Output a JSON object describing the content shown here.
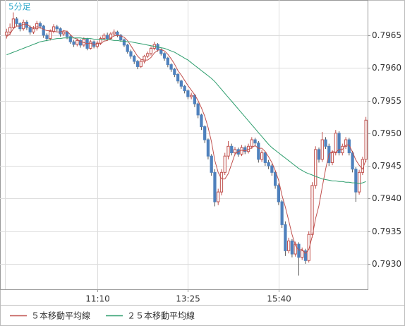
{
  "chart_data": {
    "type": "candlestick",
    "label": "5分足",
    "label_color": "#33aacc",
    "categories": [
      null,
      null,
      null,
      null,
      null,
      null,
      null,
      null,
      null,
      null,
      null,
      null,
      null,
      null,
      null,
      null,
      null,
      null,
      null,
      null,
      null,
      null,
      null,
      null,
      null,
      null,
      null,
      "11:10",
      null,
      null,
      null,
      null,
      null,
      null,
      null,
      null,
      null,
      null,
      null,
      null,
      null,
      null,
      null,
      null,
      null,
      null,
      null,
      null,
      null,
      null,
      null,
      null,
      null,
      null,
      "13:25",
      null,
      null,
      null,
      null,
      null,
      null,
      null,
      null,
      null,
      null,
      null,
      null,
      null,
      null,
      null,
      null,
      null,
      null,
      null,
      null,
      null,
      null,
      null,
      null,
      null,
      null,
      "15:40",
      null,
      null,
      null,
      null,
      null,
      null,
      null,
      null,
      null,
      null,
      null,
      null,
      null,
      null,
      null,
      null,
      null,
      null,
      null,
      null,
      null,
      null,
      null,
      null,
      null,
      null
    ],
    "open": [
      0.7965,
      0.79655,
      0.79662,
      0.79675,
      0.79668,
      0.7966,
      0.7967,
      0.79662,
      0.79655,
      0.7966,
      0.79668,
      0.79664,
      0.7965,
      0.79645,
      0.79656,
      0.79663,
      0.7966,
      0.79652,
      0.79655,
      0.79648,
      0.7964,
      0.79636,
      0.79642,
      0.79635,
      0.79644,
      0.7963,
      0.7964,
      0.79633,
      0.79638,
      0.79645,
      0.7965,
      0.79645,
      0.79652,
      0.79655,
      0.7965,
      0.79643,
      0.79635,
      0.79625,
      0.79618,
      0.7961,
      0.79602,
      0.7961,
      0.79618,
      0.79622,
      0.7963,
      0.79636,
      0.79628,
      0.79622,
      0.79615,
      0.79605,
      0.79598,
      0.7959,
      0.7958,
      0.79572,
      0.79565,
      0.79556,
      0.79558,
      0.79545,
      0.79528,
      0.7951,
      0.7949,
      0.79465,
      0.7944,
      0.79395,
      0.7941,
      0.7944,
      0.79465,
      0.7948,
      0.7947,
      0.79475,
      0.79468,
      0.79478,
      0.79472,
      0.7948,
      0.7949,
      0.79485,
      0.7946,
      0.7947,
      0.79455,
      0.7945,
      0.7944,
      0.7942,
      0.79395,
      0.7936,
      0.7932,
      0.79335,
      0.79315,
      0.7933,
      0.7931,
      0.7932,
      0.79305,
      0.79345,
      0.7942,
      0.79475,
      0.7946,
      0.7949,
      0.7948,
      0.79455,
      0.7947,
      0.795,
      0.7947,
      0.7948,
      0.7949,
      0.7947,
      0.79445,
      0.7941,
      0.7944,
      0.7946
    ],
    "high": [
      0.7966,
      0.79668,
      0.79685,
      0.79678,
      0.7967,
      0.79674,
      0.79673,
      0.79665,
      0.79664,
      0.79672,
      0.79671,
      0.79666,
      0.79653,
      0.79659,
      0.79667,
      0.79666,
      0.79662,
      0.79658,
      0.79657,
      0.7965,
      0.79643,
      0.79645,
      0.79644,
      0.79647,
      0.79646,
      0.79643,
      0.79642,
      0.79641,
      0.79648,
      0.79653,
      0.79654,
      0.79655,
      0.79659,
      0.79657,
      0.79652,
      0.79645,
      0.79637,
      0.79628,
      0.7962,
      0.79612,
      0.79613,
      0.7962,
      0.79625,
      0.79633,
      0.7964,
      0.79638,
      0.7963,
      0.79624,
      0.79617,
      0.79607,
      0.796,
      0.79592,
      0.79582,
      0.79574,
      0.79567,
      0.79562,
      0.7956,
      0.79547,
      0.7953,
      0.79512,
      0.79492,
      0.79468,
      0.79445,
      0.79415,
      0.79445,
      0.7947,
      0.79488,
      0.79484,
      0.79479,
      0.79478,
      0.79482,
      0.79481,
      0.79484,
      0.79494,
      0.79493,
      0.79488,
      0.79474,
      0.79472,
      0.79459,
      0.79453,
      0.79443,
      0.79423,
      0.79398,
      0.79365,
      0.7934,
      0.79338,
      0.79334,
      0.79333,
      0.79325,
      0.79323,
      0.7935,
      0.79425,
      0.7948,
      0.79478,
      0.79502,
      0.79494,
      0.79484,
      0.79474,
      0.79505,
      0.79503,
      0.79484,
      0.79494,
      0.79493,
      0.79473,
      0.79448,
      0.79444,
      0.79464,
      0.79525
    ],
    "low": [
      0.79645,
      0.7965,
      0.7966,
      0.79664,
      0.79656,
      0.79657,
      0.79658,
      0.79651,
      0.79652,
      0.79657,
      0.7966,
      0.79646,
      0.79641,
      0.79642,
      0.79653,
      0.79656,
      0.79648,
      0.79649,
      0.79644,
      0.79637,
      0.79632,
      0.79633,
      0.79631,
      0.79632,
      0.79627,
      0.79628,
      0.7963,
      0.7963,
      0.79635,
      0.79642,
      0.79642,
      0.79643,
      0.79649,
      0.79647,
      0.7964,
      0.79632,
      0.79622,
      0.79614,
      0.79606,
      0.79598,
      0.796,
      0.79607,
      0.79615,
      0.79619,
      0.79627,
      0.79625,
      0.79619,
      0.79611,
      0.79601,
      0.79594,
      0.79586,
      0.79576,
      0.79568,
      0.79561,
      0.79552,
      0.79552,
      0.7954,
      0.79523,
      0.79505,
      0.79485,
      0.7946,
      0.79435,
      0.79388,
      0.7939,
      0.79405,
      0.79436,
      0.7946,
      0.79466,
      0.79466,
      0.79464,
      0.79465,
      0.79468,
      0.79469,
      0.79476,
      0.7948,
      0.79455,
      0.79456,
      0.7945,
      0.79445,
      0.79435,
      0.79415,
      0.7939,
      0.79355,
      0.79312,
      0.79316,
      0.7931,
      0.79311,
      0.79282,
      0.79306,
      0.793,
      0.79302,
      0.7934,
      0.79415,
      0.79455,
      0.79456,
      0.79476,
      0.7945,
      0.79451,
      0.79466,
      0.79466,
      0.79466,
      0.79476,
      0.79466,
      0.7944,
      0.79395,
      0.79406,
      0.79436,
      0.79456
    ],
    "close": [
      0.79655,
      0.79662,
      0.79675,
      0.79668,
      0.7966,
      0.7967,
      0.79662,
      0.79655,
      0.7966,
      0.79668,
      0.79664,
      0.7965,
      0.79645,
      0.79656,
      0.79663,
      0.7966,
      0.79652,
      0.79655,
      0.79648,
      0.7964,
      0.79636,
      0.79642,
      0.79635,
      0.79644,
      0.7963,
      0.7964,
      0.79633,
      0.79638,
      0.79645,
      0.7965,
      0.79645,
      0.79652,
      0.79655,
      0.7965,
      0.79643,
      0.79635,
      0.79625,
      0.79618,
      0.7961,
      0.79602,
      0.7961,
      0.79618,
      0.79622,
      0.7963,
      0.79636,
      0.79628,
      0.79622,
      0.79615,
      0.79605,
      0.79598,
      0.7959,
      0.7958,
      0.79572,
      0.79565,
      0.79556,
      0.79558,
      0.79545,
      0.79528,
      0.7951,
      0.7949,
      0.79465,
      0.7944,
      0.79395,
      0.7941,
      0.7944,
      0.79465,
      0.7948,
      0.7947,
      0.79475,
      0.79468,
      0.79478,
      0.79472,
      0.7948,
      0.7949,
      0.79485,
      0.7946,
      0.7947,
      0.79455,
      0.7945,
      0.7944,
      0.7942,
      0.79395,
      0.7936,
      0.7932,
      0.79335,
      0.79315,
      0.7933,
      0.7931,
      0.7932,
      0.79305,
      0.79345,
      0.7942,
      0.79475,
      0.7946,
      0.7949,
      0.7948,
      0.79455,
      0.7947,
      0.795,
      0.7947,
      0.7948,
      0.7949,
      0.7947,
      0.79445,
      0.7941,
      0.7944,
      0.7946,
      0.7952
    ],
    "up_color": "#c0504d",
    "down_color": "#4f81bd",
    "wick_color": "#555555",
    "series": [
      {
        "name": "５本移動平均線",
        "color": "#c0504d",
        "values": [
          0.79648,
          0.79652,
          0.7966,
          0.79664,
          0.79664,
          0.79667,
          0.79667,
          0.79663,
          0.79661,
          0.79663,
          0.79662,
          0.79659,
          0.79657,
          0.79657,
          0.79656,
          0.79655,
          0.79655,
          0.79657,
          0.79656,
          0.79651,
          0.79646,
          0.79644,
          0.7964,
          0.79639,
          0.79637,
          0.79638,
          0.79636,
          0.79637,
          0.79637,
          0.79641,
          0.79642,
          0.79646,
          0.79649,
          0.7965,
          0.79649,
          0.79647,
          0.79642,
          0.79634,
          0.79626,
          0.79618,
          0.79613,
          0.79612,
          0.79612,
          0.79616,
          0.79623,
          0.79627,
          0.79628,
          0.79626,
          0.79621,
          0.79614,
          0.79606,
          0.79596,
          0.79589,
          0.79581,
          0.79573,
          0.79566,
          0.79559,
          0.7955,
          0.79539,
          0.79526,
          0.79509,
          0.79487,
          0.79458,
          0.7944,
          0.7943,
          0.7943,
          0.79438,
          0.79453,
          0.79468,
          0.79472,
          0.79474,
          0.79473,
          0.79475,
          0.79478,
          0.79481,
          0.79477,
          0.79477,
          0.79472,
          0.79464,
          0.79455,
          0.79443,
          0.79428,
          0.79405,
          0.79387,
          0.79366,
          0.79345,
          0.79328,
          0.79321,
          0.79322,
          0.79316,
          0.79322,
          0.79342,
          0.79369,
          0.79389,
          0.79418,
          0.79445,
          0.79468,
          0.79472,
          0.79471,
          0.79475,
          0.79475,
          0.79482,
          0.79482,
          0.79471,
          0.79459,
          0.79451,
          0.79445,
          0.79459
        ]
      },
      {
        "name": "２５本移動平均線",
        "color": "#2e9e6e",
        "values": [
          0.7962,
          0.79622,
          0.79624,
          0.79626,
          0.79628,
          0.7963,
          0.79632,
          0.79634,
          0.79636,
          0.79638,
          0.7964,
          0.79641,
          0.79642,
          0.79643,
          0.79644,
          0.79645,
          0.79645,
          0.79646,
          0.79646,
          0.79646,
          0.79646,
          0.79646,
          0.79646,
          0.79645,
          0.79645,
          0.79645,
          0.79644,
          0.79644,
          0.79644,
          0.79643,
          0.79643,
          0.79643,
          0.79642,
          0.79642,
          0.79641,
          0.79641,
          0.7964,
          0.7964,
          0.79639,
          0.79638,
          0.79637,
          0.79636,
          0.79635,
          0.79634,
          0.79633,
          0.79632,
          0.79631,
          0.7963,
          0.79628,
          0.79626,
          0.79624,
          0.79621,
          0.79618,
          0.79615,
          0.79612,
          0.79608,
          0.79604,
          0.796,
          0.79596,
          0.79592,
          0.79588,
          0.79584,
          0.79579,
          0.79573,
          0.79567,
          0.79561,
          0.79555,
          0.79549,
          0.79543,
          0.79537,
          0.79531,
          0.79525,
          0.79519,
          0.79513,
          0.79507,
          0.79501,
          0.79495,
          0.79489,
          0.79483,
          0.79478,
          0.79474,
          0.7947,
          0.79466,
          0.79462,
          0.79458,
          0.79454,
          0.7945,
          0.79446,
          0.79443,
          0.7944,
          0.79438,
          0.79436,
          0.79434,
          0.79432,
          0.7943,
          0.79429,
          0.79428,
          0.79427,
          0.79427,
          0.79426,
          0.79426,
          0.79425,
          0.79425,
          0.79424,
          0.79424,
          0.79423,
          0.79424,
          0.79426
        ]
      }
    ],
    "ylim": [
      0.79261,
      0.79704
    ],
    "yticks": [
      {
        "value": 0.793,
        "label": "0.7930"
      },
      {
        "value": 0.7935,
        "label": "0.7935"
      },
      {
        "value": 0.794,
        "label": "0.7940"
      },
      {
        "value": 0.7945,
        "label": "0.7945"
      },
      {
        "value": 0.795,
        "label": "0.7950"
      },
      {
        "value": 0.7955,
        "label": "0.7955"
      },
      {
        "value": 0.796,
        "label": "0.7960"
      },
      {
        "value": 0.7965,
        "label": "0.7965"
      }
    ],
    "grid": true
  }
}
